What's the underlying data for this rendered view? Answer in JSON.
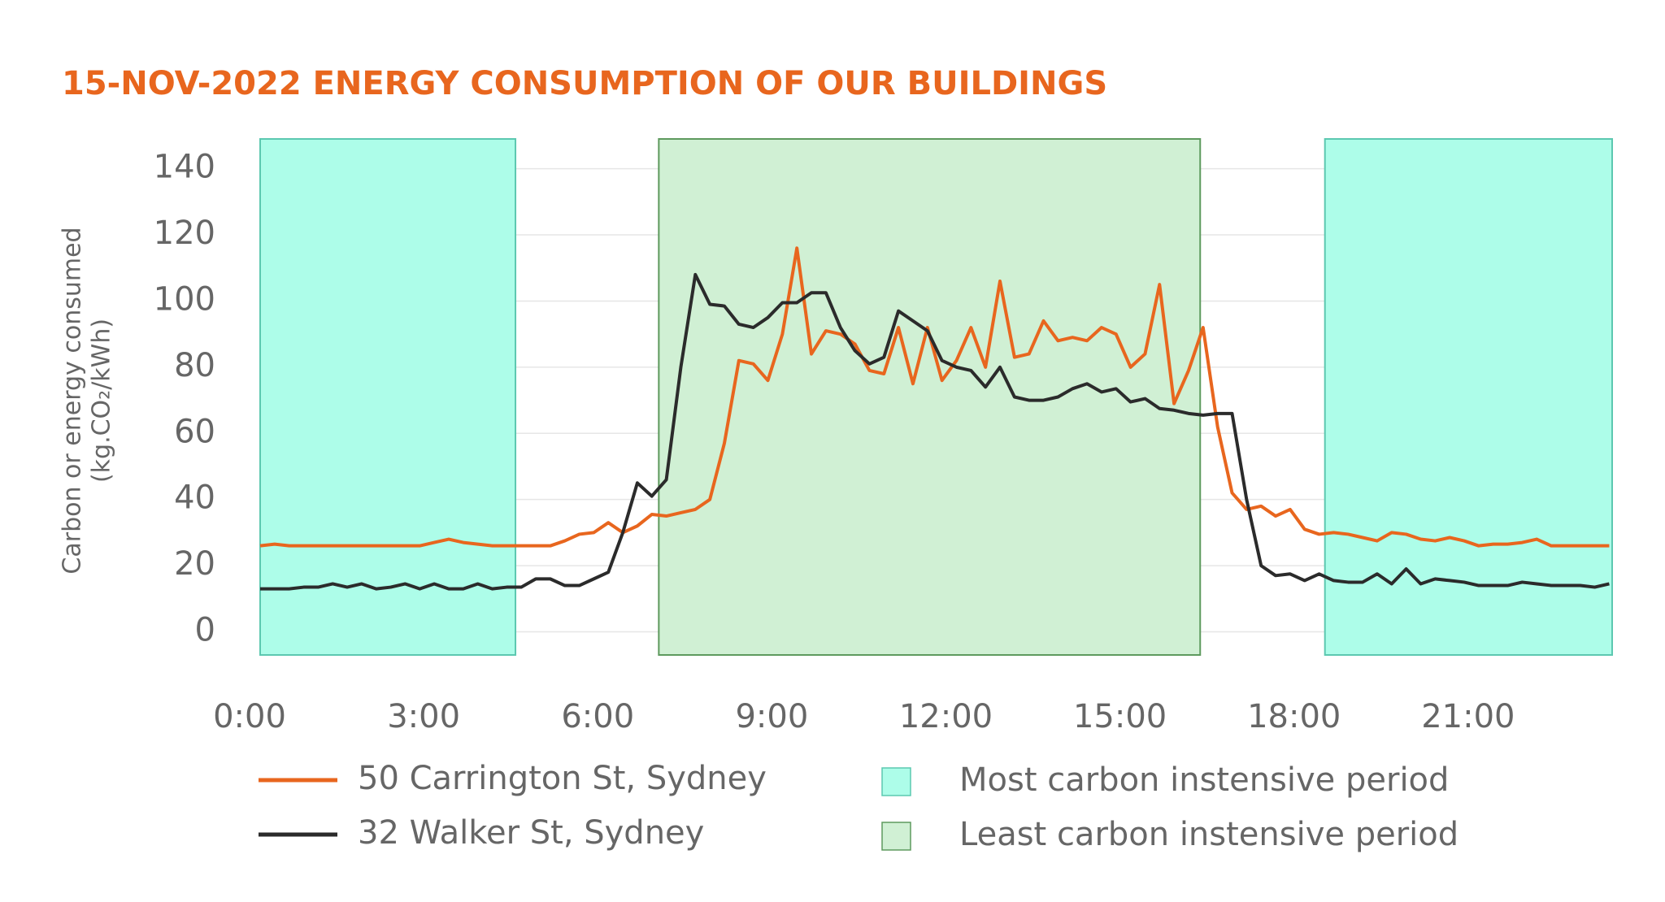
{
  "chart_data": {
    "type": "line",
    "title": "15-NOV-2022 ENERGY CONSUMPTION OF OUR BUILDINGS",
    "ylabel": "Carbon or energy consumed",
    "ylabel_unit": "(kg.CO₂/kWh)",
    "x": [
      0,
      0.25,
      0.5,
      0.75,
      1,
      1.25,
      1.5,
      1.75,
      2,
      2.25,
      2.5,
      2.75,
      3,
      3.25,
      3.5,
      3.75,
      4,
      4.25,
      4.5,
      4.75,
      5,
      5.25,
      5.5,
      5.75,
      6,
      6.25,
      6.5,
      6.75,
      7,
      7.25,
      7.5,
      7.75,
      8,
      8.25,
      8.5,
      8.75,
      9,
      9.25,
      9.5,
      9.75,
      10,
      10.25,
      10.5,
      10.75,
      11,
      11.25,
      11.5,
      11.75,
      12,
      12.25,
      12.5,
      12.75,
      13,
      13.25,
      13.5,
      13.75,
      14,
      14.25,
      14.5,
      14.75,
      15,
      15.25,
      15.5,
      15.75,
      16,
      16.25,
      16.5,
      16.75,
      17,
      17.25,
      17.5,
      17.75,
      18,
      18.25,
      18.5,
      18.75,
      19,
      19.25,
      19.5,
      19.75,
      20,
      20.25,
      20.5,
      20.75,
      21,
      21.25,
      21.5,
      21.75,
      22,
      22.25,
      22.5,
      22.75,
      23,
      23.25
    ],
    "series": [
      {
        "name": "50 Carrington St, Sydney",
        "color": "#e8661e",
        "values": [
          26,
          26.5,
          26,
          26,
          26,
          26,
          26,
          26,
          26,
          26,
          26,
          26,
          27,
          28,
          27,
          26.5,
          26,
          26,
          26,
          26,
          26,
          27.5,
          29.5,
          30,
          33,
          30,
          32,
          35.5,
          35,
          36,
          37,
          40,
          57,
          82,
          81,
          76,
          90,
          116,
          84,
          91,
          90,
          87,
          79,
          78,
          92,
          75,
          92,
          76,
          82,
          92,
          80,
          106,
          83,
          84,
          94,
          88,
          89,
          88,
          92,
          90,
          80,
          84,
          105,
          69,
          79,
          92,
          62,
          42,
          37,
          38,
          35,
          37,
          31,
          29.5,
          30,
          29.5,
          28.5,
          27.5,
          30,
          29.5,
          28,
          27.5,
          28.5,
          27.5,
          26,
          26.5,
          26.5,
          27,
          28,
          26,
          26,
          26,
          26,
          26
        ]
      },
      {
        "name": "32 Walker St, Sydney",
        "color": "#2b2b2b",
        "values": [
          13,
          13,
          13,
          13.5,
          13.5,
          14.5,
          13.5,
          14.5,
          13,
          13.5,
          14.5,
          13,
          14.5,
          13,
          13,
          14.5,
          13,
          13.5,
          13.5,
          16,
          16,
          14,
          14,
          16,
          18,
          30,
          45,
          41,
          46,
          80,
          108,
          99,
          98.5,
          93,
          92,
          95,
          99.5,
          99.5,
          102.5,
          102.5,
          92,
          85,
          81,
          83,
          97,
          94,
          91,
          82,
          80,
          79,
          74,
          80,
          71,
          70,
          70,
          71,
          73.5,
          75,
          72.5,
          73.5,
          69.5,
          70.5,
          67.5,
          67,
          66,
          65.5,
          66,
          66,
          40,
          20,
          17,
          17.5,
          15.5,
          17.5,
          15.5,
          15,
          15,
          17.5,
          14.5,
          19,
          14.5,
          16,
          15.5,
          15,
          14,
          14,
          14,
          15,
          14.5,
          14,
          14,
          14,
          13.5,
          14.5
        ]
      }
    ],
    "shaded_periods": [
      {
        "name": "Most carbon instensive period",
        "color": "#adfde9",
        "edge": "#5cc8b0",
        "ranges": [
          [
            0,
            4.4
          ],
          [
            18.35,
            23.3
          ]
        ]
      },
      {
        "name": "Least carbon instensive period",
        "color": "#d0f0d4",
        "edge": "#5e9a5e",
        "ranges": [
          [
            6.87,
            16.2
          ]
        ]
      }
    ],
    "xlim": [
      0,
      23.3
    ],
    "ylim": [
      -7,
      149
    ],
    "xticks": [
      {
        "value": 0,
        "label": "0:00"
      },
      {
        "value": 3,
        "label": "3:00"
      },
      {
        "value": 6,
        "label": "6:00"
      },
      {
        "value": 9,
        "label": "9:00"
      },
      {
        "value": 12,
        "label": "12:00"
      },
      {
        "value": 15,
        "label": "15:00"
      },
      {
        "value": 18,
        "label": "18:00"
      },
      {
        "value": 21,
        "label": "21:00"
      }
    ],
    "yticks": [
      0,
      20,
      40,
      60,
      80,
      100,
      120,
      140
    ],
    "grid": true
  }
}
